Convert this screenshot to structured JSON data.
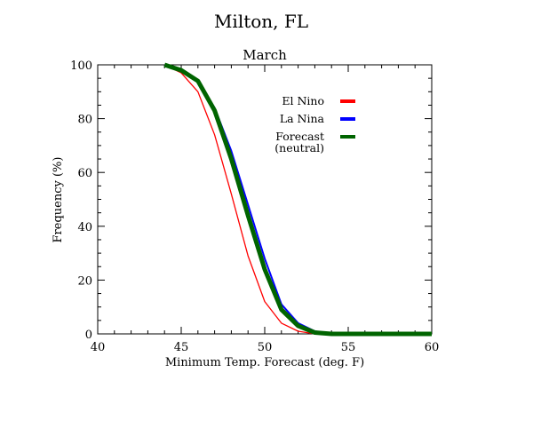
{
  "chart_data": {
    "type": "line",
    "title": "Milton, FL",
    "subtitle": "March",
    "xlabel": "Minimum Temp. Forecast (deg. F)",
    "ylabel": "Frequency (%)",
    "xlim": [
      40,
      60
    ],
    "ylim": [
      0,
      100
    ],
    "x_ticks": [
      "40",
      "45",
      "50",
      "55",
      "60"
    ],
    "y_ticks": [
      "0",
      "20",
      "40",
      "60",
      "80",
      "100"
    ],
    "grid": false,
    "legend_position": "upper-right inside plot",
    "series": [
      {
        "name": "El Nino",
        "color": "#ff0000",
        "points": [
          [
            44,
            100
          ],
          [
            45,
            97
          ],
          [
            46,
            90
          ],
          [
            47,
            74
          ],
          [
            48,
            52
          ],
          [
            49,
            29
          ],
          [
            50,
            12
          ],
          [
            51,
            4
          ],
          [
            52,
            1
          ],
          [
            53,
            0
          ],
          [
            54,
            0
          ],
          [
            55,
            0
          ],
          [
            56,
            0
          ],
          [
            57,
            0
          ],
          [
            58,
            0
          ],
          [
            59,
            0
          ],
          [
            60,
            0
          ]
        ]
      },
      {
        "name": "La Nina",
        "color": "#0000ff",
        "points": [
          [
            44,
            100
          ],
          [
            45,
            98
          ],
          [
            46,
            94
          ],
          [
            47,
            84
          ],
          [
            48,
            68
          ],
          [
            49,
            48
          ],
          [
            50,
            28
          ],
          [
            51,
            11
          ],
          [
            52,
            4
          ],
          [
            53,
            1
          ],
          [
            54,
            0
          ],
          [
            55,
            0
          ],
          [
            56,
            0
          ],
          [
            57,
            0
          ],
          [
            58,
            0
          ],
          [
            59,
            0
          ],
          [
            60,
            0
          ]
        ]
      },
      {
        "name": "Forecast\n(neutral)",
        "color": "#006400",
        "points": [
          [
            44,
            100
          ],
          [
            45,
            98
          ],
          [
            46,
            94
          ],
          [
            47,
            83
          ],
          [
            48,
            65
          ],
          [
            49,
            44
          ],
          [
            50,
            24
          ],
          [
            51,
            9
          ],
          [
            52,
            3
          ],
          [
            53,
            0.5
          ],
          [
            54,
            0
          ],
          [
            55,
            0
          ],
          [
            56,
            0
          ],
          [
            57,
            0
          ],
          [
            58,
            0
          ],
          [
            59,
            0
          ],
          [
            60,
            0
          ]
        ]
      }
    ]
  }
}
